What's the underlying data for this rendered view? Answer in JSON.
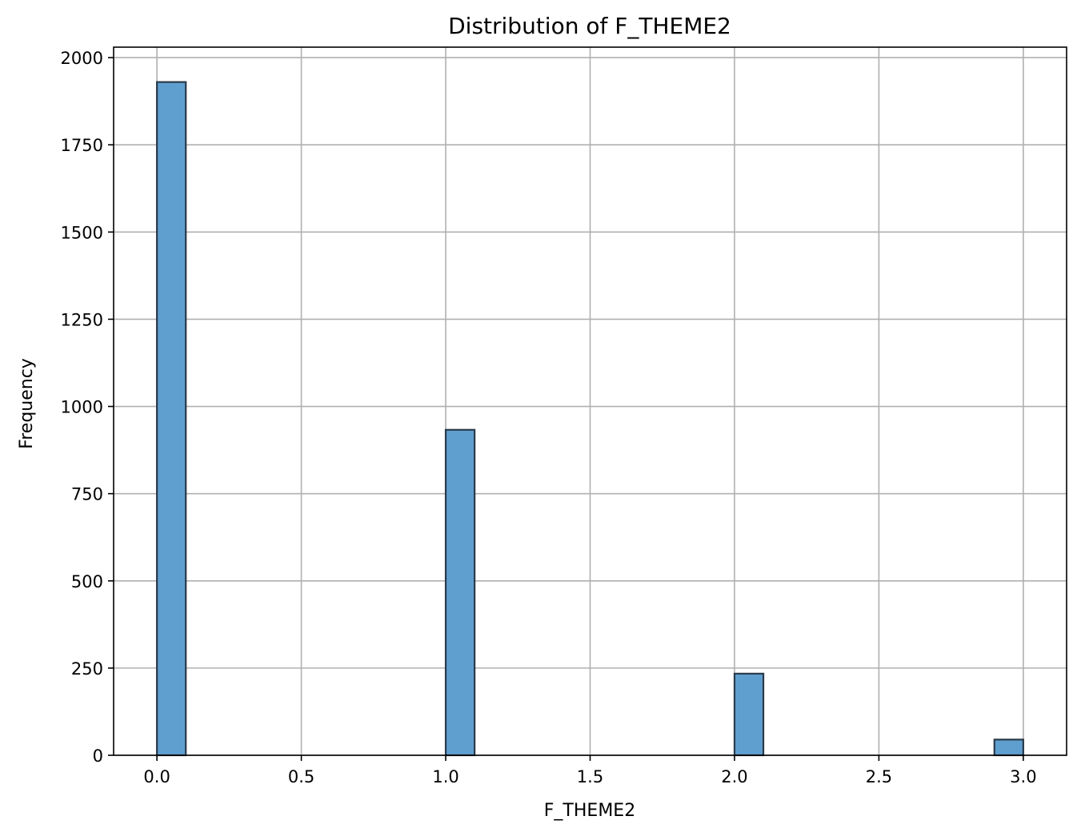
{
  "chart_data": {
    "type": "bar",
    "title": "Distribution of F_THEME2",
    "xlabel": "F_THEME2",
    "ylabel": "Frequency",
    "xlim": [
      -0.15,
      3.15
    ],
    "ylim": [
      0,
      2030
    ],
    "xticks": [
      0.0,
      0.5,
      1.0,
      1.5,
      2.0,
      2.5,
      3.0
    ],
    "xtick_labels": [
      "0.0",
      "0.5",
      "1.0",
      "1.5",
      "2.0",
      "2.5",
      "3.0"
    ],
    "yticks": [
      0,
      250,
      500,
      750,
      1000,
      1250,
      1500,
      1750,
      2000
    ],
    "ytick_labels": [
      "0",
      "250",
      "500",
      "750",
      "1000",
      "1250",
      "1500",
      "1750",
      "2000"
    ],
    "grid": true,
    "bins": [
      {
        "x0": 0.0,
        "x1": 0.1,
        "value": 1930
      },
      {
        "x0": 1.0,
        "x1": 1.1,
        "value": 933
      },
      {
        "x0": 2.0,
        "x1": 2.1,
        "value": 234
      },
      {
        "x0": 2.9,
        "x1": 3.0,
        "value": 45
      }
    ],
    "bar_color": "#5f9fcf",
    "edge_color": "#2a3a4a"
  }
}
